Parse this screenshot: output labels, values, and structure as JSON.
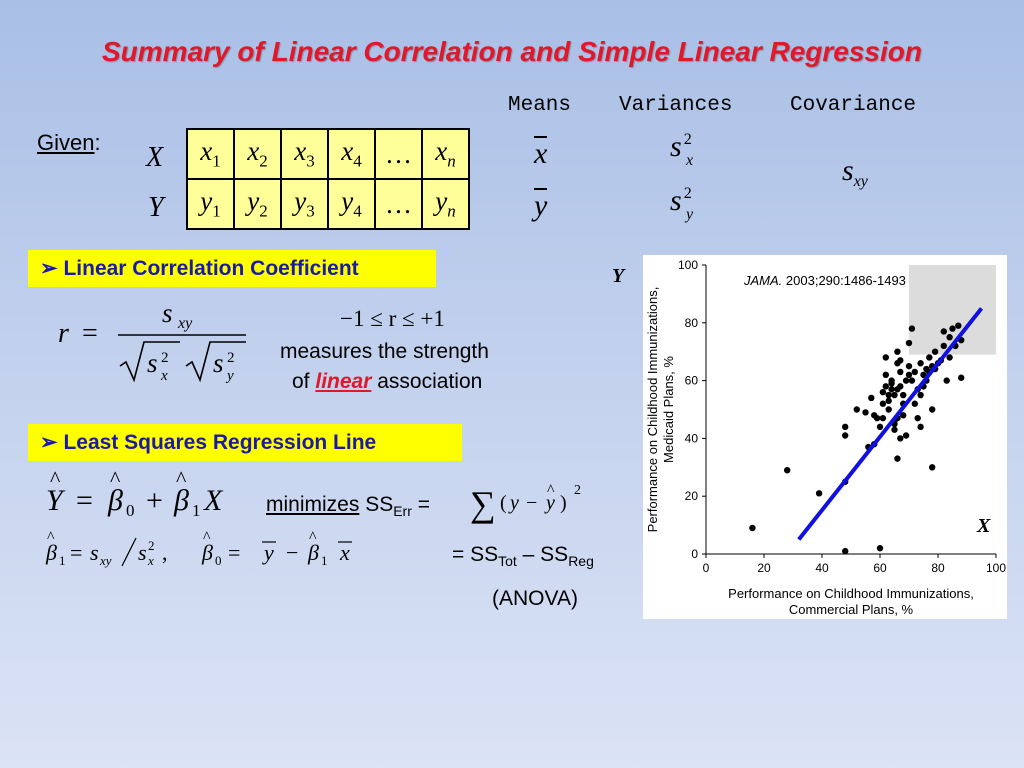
{
  "title": "Summary of Linear Correlation and Simple Linear Regression",
  "headers": {
    "means": "Means",
    "variances": "Variances",
    "covariance": "Covariance"
  },
  "given_label": "Given",
  "given_colon": ":",
  "row_x": "X",
  "row_y": "Y",
  "x_cells": [
    [
      "x",
      "1"
    ],
    [
      "x",
      "2"
    ],
    [
      "x",
      "3"
    ],
    [
      "x",
      "4"
    ],
    [
      "…",
      ""
    ],
    [
      "x",
      "n"
    ]
  ],
  "y_cells": [
    [
      "y",
      "1"
    ],
    [
      "y",
      "2"
    ],
    [
      "y",
      "3"
    ],
    [
      "y",
      "4"
    ],
    [
      "…",
      ""
    ],
    [
      "y",
      "n"
    ]
  ],
  "stats": {
    "xbar": "x",
    "ybar": "y",
    "sx2": {
      "base": "s",
      "sub": "x",
      "sup": "2"
    },
    "sy2": {
      "base": "s",
      "sub": "y",
      "sup": "2"
    },
    "sxy": {
      "base": "s",
      "sub": "xy"
    }
  },
  "banner1": "Linear Correlation Coefficient",
  "banner2": "Least Squares Regression Line",
  "bullet": "➢",
  "r_range": "−1 ≤  r ≤ +1",
  "measures_line": "measures the strength",
  "of_word": "of",
  "linear_word": "linear",
  "association_word": "association",
  "minimizes": "minimizes",
  "ss": "SS",
  "err": "Err",
  "tot": "Tot",
  "reg": "Reg",
  "anova": "(ANOVA)",
  "chart_axis_letter_y": "Y",
  "chart_axis_letter_x": "X",
  "chart_data": {
    "type": "scatter",
    "reference_italic": "JAMA.",
    "reference_rest": " 2003;290:1486-1493",
    "xlabel_line1": "Performance on Childhood Immunizations,",
    "xlabel_line2": "Commercial Plans, %",
    "ylabel_line1": "Performance on Childhood Immunizations,",
    "ylabel_line2": "Medicaid Plans, %",
    "xlim": [
      0,
      100
    ],
    "ylim": [
      0,
      100
    ],
    "xticks": [
      0,
      20,
      40,
      60,
      80,
      100
    ],
    "yticks": [
      0,
      20,
      40,
      60,
      80,
      100
    ],
    "highlight_region": {
      "x": [
        70,
        100
      ],
      "y": [
        69,
        100
      ],
      "color": "#dcdcdc"
    },
    "regression_line": {
      "x": [
        32,
        95
      ],
      "y": [
        5,
        85
      ],
      "color": "#1010e0"
    },
    "points": [
      [
        16,
        9
      ],
      [
        28,
        29
      ],
      [
        39,
        21
      ],
      [
        48,
        25
      ],
      [
        48,
        44
      ],
      [
        48,
        41
      ],
      [
        48,
        1
      ],
      [
        52,
        50
      ],
      [
        55,
        49
      ],
      [
        57,
        54
      ],
      [
        58,
        48
      ],
      [
        59,
        47
      ],
      [
        58,
        38
      ],
      [
        60,
        44
      ],
      [
        61,
        56
      ],
      [
        61,
        52
      ],
      [
        62,
        58
      ],
      [
        62,
        62
      ],
      [
        62,
        68
      ],
      [
        63,
        50
      ],
      [
        63,
        53
      ],
      [
        63,
        55
      ],
      [
        64,
        57
      ],
      [
        64,
        59
      ],
      [
        64,
        60
      ],
      [
        65,
        45
      ],
      [
        65,
        43
      ],
      [
        65,
        46
      ],
      [
        65,
        55
      ],
      [
        66,
        57
      ],
      [
        66,
        66
      ],
      [
        66,
        70
      ],
      [
        67,
        63
      ],
      [
        67,
        67
      ],
      [
        67,
        58
      ],
      [
        68,
        52
      ],
      [
        68,
        48
      ],
      [
        68,
        55
      ],
      [
        69,
        41
      ],
      [
        69,
        60
      ],
      [
        70,
        73
      ],
      [
        70,
        65
      ],
      [
        71,
        78
      ],
      [
        71,
        60
      ],
      [
        72,
        63
      ],
      [
        72,
        52
      ],
      [
        73,
        57
      ],
      [
        73,
        47
      ],
      [
        74,
        66
      ],
      [
        74,
        44
      ],
      [
        75,
        62
      ],
      [
        75,
        58
      ],
      [
        76,
        60
      ],
      [
        76,
        64
      ],
      [
        77,
        68
      ],
      [
        77,
        63
      ],
      [
        78,
        65
      ],
      [
        78,
        30
      ],
      [
        78,
        50
      ],
      [
        79,
        70
      ],
      [
        80,
        66
      ],
      [
        81,
        67
      ],
      [
        82,
        72
      ],
      [
        82,
        77
      ],
      [
        83,
        60
      ],
      [
        84,
        75
      ],
      [
        85,
        78
      ],
      [
        86,
        72
      ],
      [
        87,
        79
      ],
      [
        88,
        74
      ],
      [
        88,
        61
      ],
      [
        60,
        2
      ],
      [
        56,
        37
      ],
      [
        61,
        47
      ],
      [
        66,
        47
      ],
      [
        70,
        62
      ],
      [
        74,
        55
      ],
      [
        79,
        64
      ],
      [
        84,
        68
      ],
      [
        66,
        33
      ],
      [
        67,
        40
      ]
    ]
  }
}
